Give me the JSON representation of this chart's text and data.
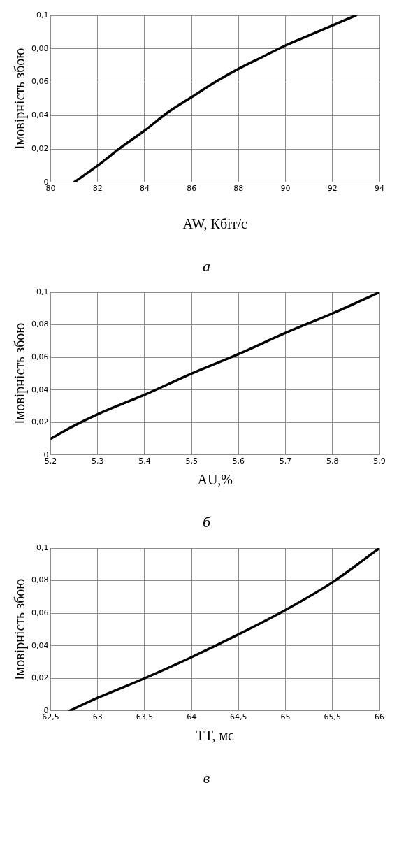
{
  "chart_data": [
    {
      "type": "line",
      "xlabel": "AW, Кбіт/с",
      "ylabel": "Імовірність збою",
      "annotations": [
        "а"
      ],
      "grid": true,
      "legend": false,
      "marker": "none",
      "line_style": "solid",
      "xlim": [
        80,
        94
      ],
      "xticks": [
        80,
        82,
        84,
        86,
        88,
        90,
        92,
        94
      ],
      "ylim": [
        0,
        0.1
      ],
      "yticks": [
        {
          "value": 0,
          "label": "0"
        },
        {
          "value": 0.02,
          "label": "0,02"
        },
        {
          "value": 0.04,
          "label": "0,04"
        },
        {
          "value": 0.06,
          "label": "0,06"
        },
        {
          "value": 0.08,
          "label": "0,08"
        },
        {
          "value": 0.1,
          "label": "0,1"
        }
      ],
      "x": [
        81,
        82,
        83,
        84,
        85,
        86,
        87,
        88,
        89,
        90,
        91,
        92,
        93
      ],
      "series": [
        {
          "color": "#000000",
          "values": [
            0,
            0.01,
            0.021,
            0.031,
            0.042,
            0.051,
            0.06,
            0.068,
            0.075,
            0.082,
            0.088,
            0.094,
            0.1
          ]
        }
      ]
    },
    {
      "type": "line",
      "xlabel": "AU,%",
      "ylabel": "Імовірність збою",
      "annotations": [
        "б"
      ],
      "grid": true,
      "legend": false,
      "marker": "none",
      "line_style": "solid",
      "xlim": [
        5.2,
        5.9
      ],
      "xticks": [
        {
          "value": 5.2,
          "label": "5,2"
        },
        {
          "value": 5.3,
          "label": "5,3"
        },
        {
          "value": 5.4,
          "label": "5,4"
        },
        {
          "value": 5.5,
          "label": "5,5"
        },
        {
          "value": 5.6,
          "label": "5,6"
        },
        {
          "value": 5.7,
          "label": "5,7"
        },
        {
          "value": 5.8,
          "label": "5,8"
        },
        {
          "value": 5.9,
          "label": "5,9"
        }
      ],
      "ylim": [
        0,
        0.1
      ],
      "yticks": [
        {
          "value": 0,
          "label": "0"
        },
        {
          "value": 0.02,
          "label": "0,02"
        },
        {
          "value": 0.04,
          "label": "0,04"
        },
        {
          "value": 0.06,
          "label": "0,06"
        },
        {
          "value": 0.08,
          "label": "0,08"
        },
        {
          "value": 0.1,
          "label": "0,1"
        }
      ],
      "x": [
        5.2,
        5.25,
        5.3,
        5.4,
        5.5,
        5.6,
        5.7,
        5.8,
        5.9
      ],
      "series": [
        {
          "color": "#000000",
          "values": [
            0.01,
            0.018,
            0.025,
            0.037,
            0.05,
            0.062,
            0.075,
            0.087,
            0.1
          ]
        }
      ]
    },
    {
      "type": "line",
      "xlabel": "TT, мс",
      "ylabel": "Імовірність збою",
      "annotations": [
        "в"
      ],
      "grid": true,
      "legend": false,
      "marker": "none",
      "line_style": "solid",
      "xlim": [
        62.5,
        66
      ],
      "xticks": [
        {
          "value": 62.5,
          "label": "62,5"
        },
        63,
        {
          "value": 63.5,
          "label": "63,5"
        },
        64,
        {
          "value": 64.5,
          "label": "64,5"
        },
        65,
        {
          "value": 65.5,
          "label": "65,5"
        },
        66
      ],
      "ylim": [
        0,
        0.1
      ],
      "yticks": [
        {
          "value": 0,
          "label": "0"
        },
        {
          "value": 0.02,
          "label": "0,02"
        },
        {
          "value": 0.04,
          "label": "0,04"
        },
        {
          "value": 0.06,
          "label": "0,06"
        },
        {
          "value": 0.08,
          "label": "0,08"
        },
        {
          "value": 0.1,
          "label": "0,1"
        }
      ],
      "x": [
        62.7,
        63,
        63.5,
        64,
        64.5,
        65,
        65.5,
        66
      ],
      "series": [
        {
          "color": "#000000",
          "values": [
            0,
            0.008,
            0.02,
            0.033,
            0.047,
            0.062,
            0.079,
            0.1
          ]
        }
      ]
    }
  ]
}
